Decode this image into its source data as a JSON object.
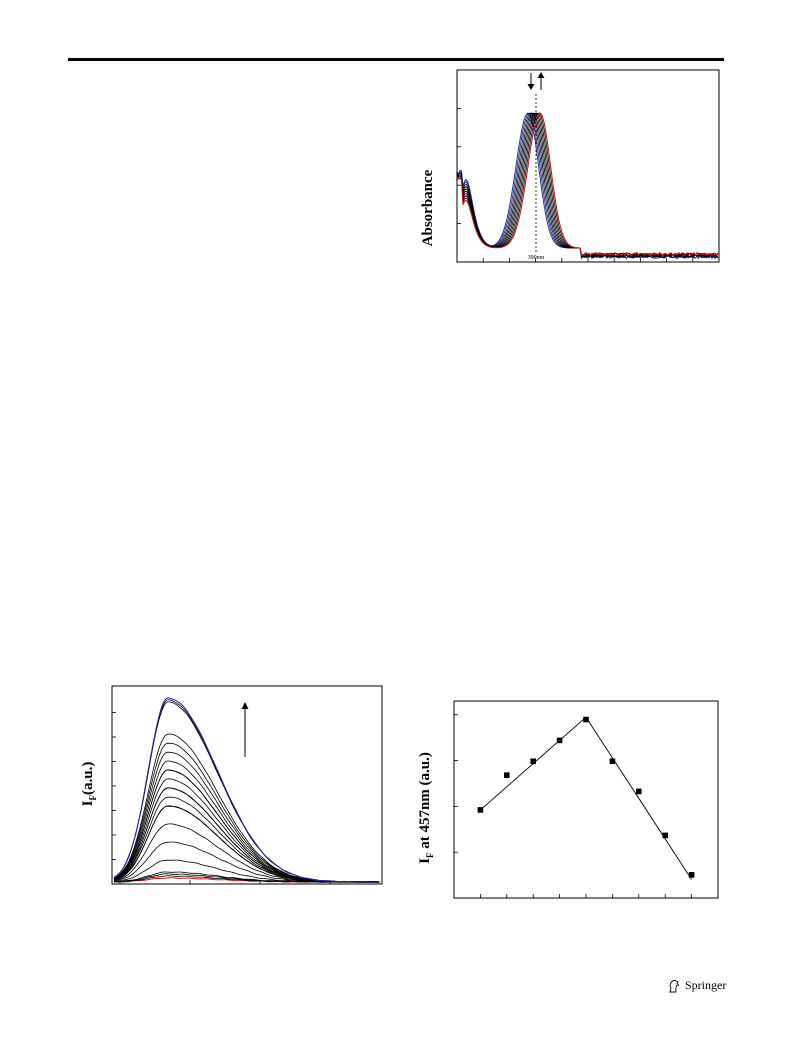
{
  "page": {
    "publisher": "Springer"
  },
  "chart_data": [
    {
      "id": "absorption",
      "type": "line",
      "title": "",
      "xlabel": "",
      "ylabel": "Absorbance",
      "annotation": "390nm",
      "arrows": [
        "down",
        "up"
      ],
      "series_colors": {
        "first": "#1f2fa8",
        "last": "#c41a1a",
        "intermediate": "#000000"
      },
      "series_count": 10,
      "x_ticks": 9,
      "y_ticks": 4
    },
    {
      "id": "fluorescence",
      "type": "line",
      "title": "",
      "xlabel": "",
      "ylabel": "I",
      "ylabel_sub": "F",
      "ylabel_unit": "(a.u.)",
      "arrows": [
        "up"
      ],
      "series_colors": {
        "first": "#c41a1a",
        "last": "#1f2fa8",
        "intermediate": "#000000"
      },
      "series_count": 22,
      "x_ticks": 4,
      "y_ticks": 7
    },
    {
      "id": "job_plot",
      "type": "scatter",
      "title": "",
      "xlabel": "",
      "ylabel": "I",
      "ylabel_sub": "F",
      "ylabel_rest": " at 457nm (a.u.)",
      "x": [
        0.1,
        0.2,
        0.3,
        0.4,
        0.5,
        0.6,
        0.7,
        0.8,
        0.9
      ],
      "y": [
        0.38,
        0.53,
        0.59,
        0.68,
        0.77,
        0.59,
        0.46,
        0.27,
        0.1
      ],
      "fit_lines": [
        {
          "from": [
            0.1,
            0.38
          ],
          "to": [
            0.5,
            0.78
          ]
        },
        {
          "from": [
            0.5,
            0.78
          ],
          "to": [
            0.9,
            0.08
          ]
        }
      ],
      "xlim": [
        0,
        1.0
      ],
      "ylim": [
        0,
        0.85
      ],
      "x_ticks": 10,
      "y_ticks": 4
    }
  ]
}
